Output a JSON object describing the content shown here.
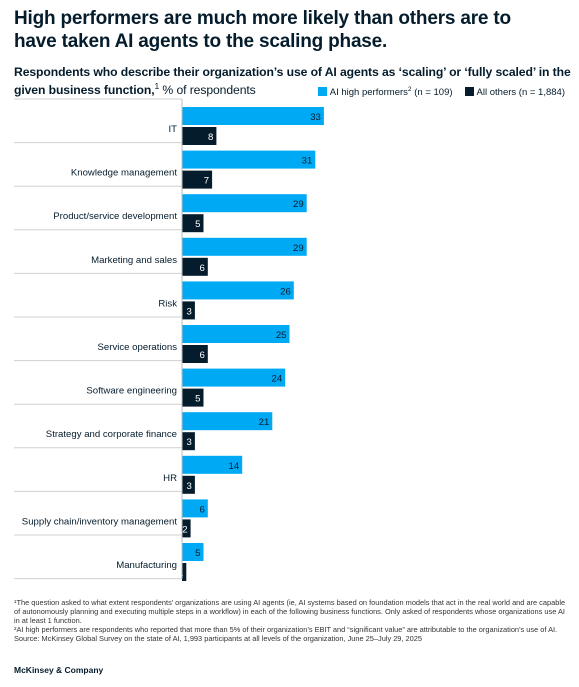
{
  "headline": "High performers are much more likely than others are to have taken AI agents to the scaling phase.",
  "subtitle": {
    "bold": "Respondents who describe their organization’s use of AI agents as ‘scaling’ or ‘fully scaled’ in the given business function,",
    "sup": "1",
    "rest": " % of respondents"
  },
  "legend": {
    "high": {
      "name": "AI high performers",
      "sup": "2",
      "n": " (n = 109)"
    },
    "others": {
      "name": "All others (n = 1,884)"
    }
  },
  "colors": {
    "high": "#00a9f4",
    "others": "#051c2c",
    "text": "#051c2c",
    "divider": "#d0d0d0"
  },
  "chart_data": {
    "type": "bar",
    "orientation": "horizontal",
    "categories": [
      "IT",
      "Knowledge management",
      "Product/service development",
      "Marketing and sales",
      "Risk",
      "Service operations",
      "Software engineering",
      "Strategy and corporate finance",
      "HR",
      "Supply chain/inventory management",
      "Manufacturing"
    ],
    "series": [
      {
        "name": "AI high performers (n = 109)",
        "values": [
          33,
          31,
          29,
          29,
          26,
          25,
          24,
          21,
          14,
          6,
          5
        ]
      },
      {
        "name": "All others (n = 1,884)",
        "values": [
          8,
          7,
          5,
          6,
          3,
          6,
          5,
          3,
          3,
          2,
          1
        ]
      }
    ],
    "xlim": [
      0,
      35
    ]
  },
  "footnotes": [
    "¹The question asked to what extent respondents’ organizations are using AI agents (ie, AI systems based on foundation models that act in the real world and are capable of autonomously planning and executing multiple steps in a workflow) in each of the following business functions. Only asked of respondents whose organizations use AI in at least 1 function.",
    "²AI high performers are respondents who reported that more than 5% of their organization’s EBIT and “significant value” are attributable to the organization’s use of AI.",
    "Source: McKinsey Global Survey on the state of AI, 1,993 participants at all levels of the organization, June 25–July 29, 2025"
  ],
  "brand": "McKinsey & Company"
}
